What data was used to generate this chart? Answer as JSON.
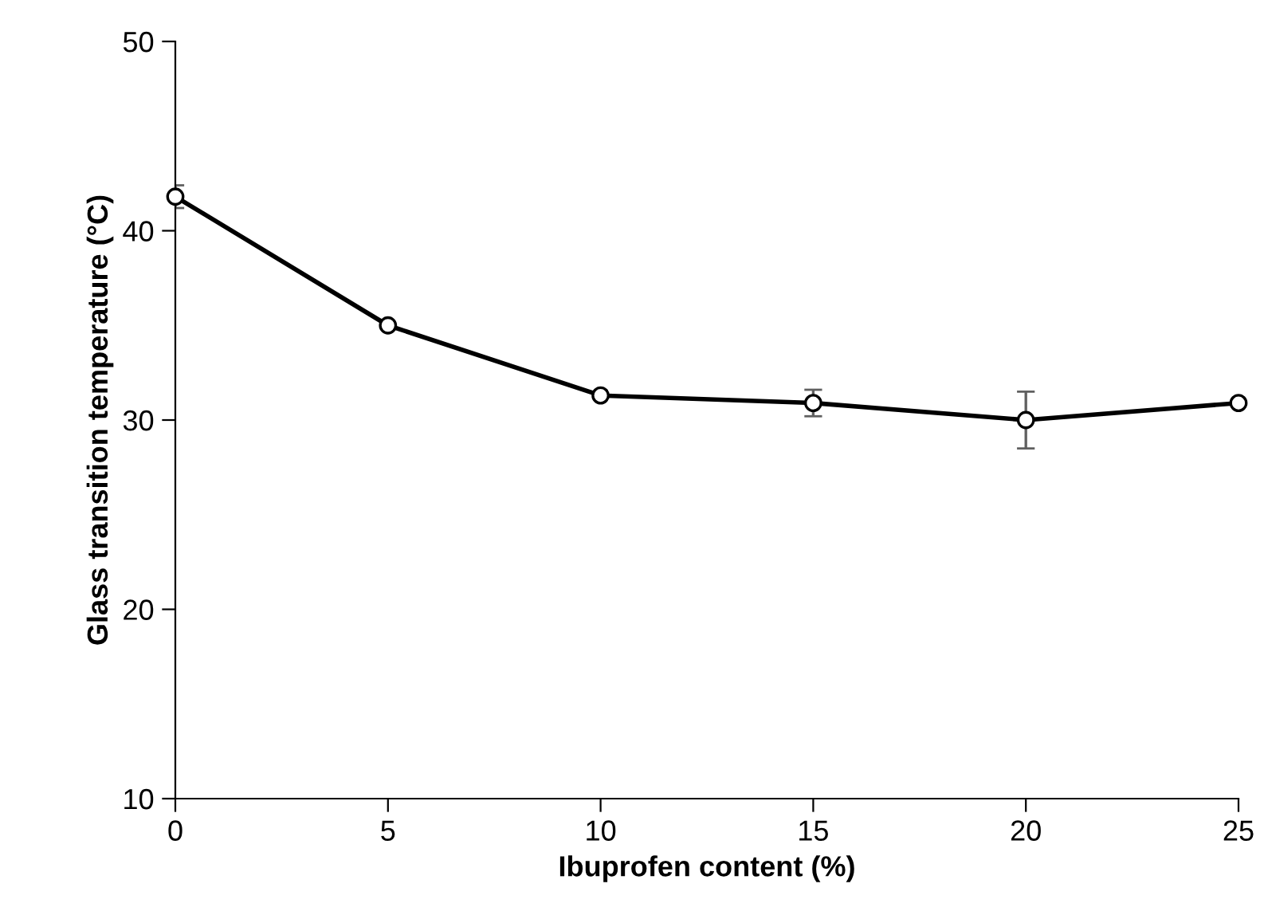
{
  "chart_data": {
    "type": "line",
    "xlabel": "Ibuprofen content (%)",
    "ylabel": "Glass transition temperature (°C)",
    "x": [
      0,
      5,
      10,
      15,
      20,
      25
    ],
    "series": [
      {
        "color": "#000000",
        "values": [
          41.8,
          35.0,
          31.3,
          30.9,
          30.0,
          30.9
        ],
        "errors": [
          0.6,
          null,
          null,
          0.7,
          1.5,
          null
        ]
      }
    ],
    "xlim": [
      0,
      25
    ],
    "xticks": [
      0,
      5,
      10,
      15,
      20,
      25
    ],
    "ylim": [
      10,
      50
    ],
    "yticks": [
      10,
      20,
      30,
      40,
      50
    ],
    "grid": false,
    "legend": false,
    "marker": "circle",
    "line_style": "solid"
  }
}
